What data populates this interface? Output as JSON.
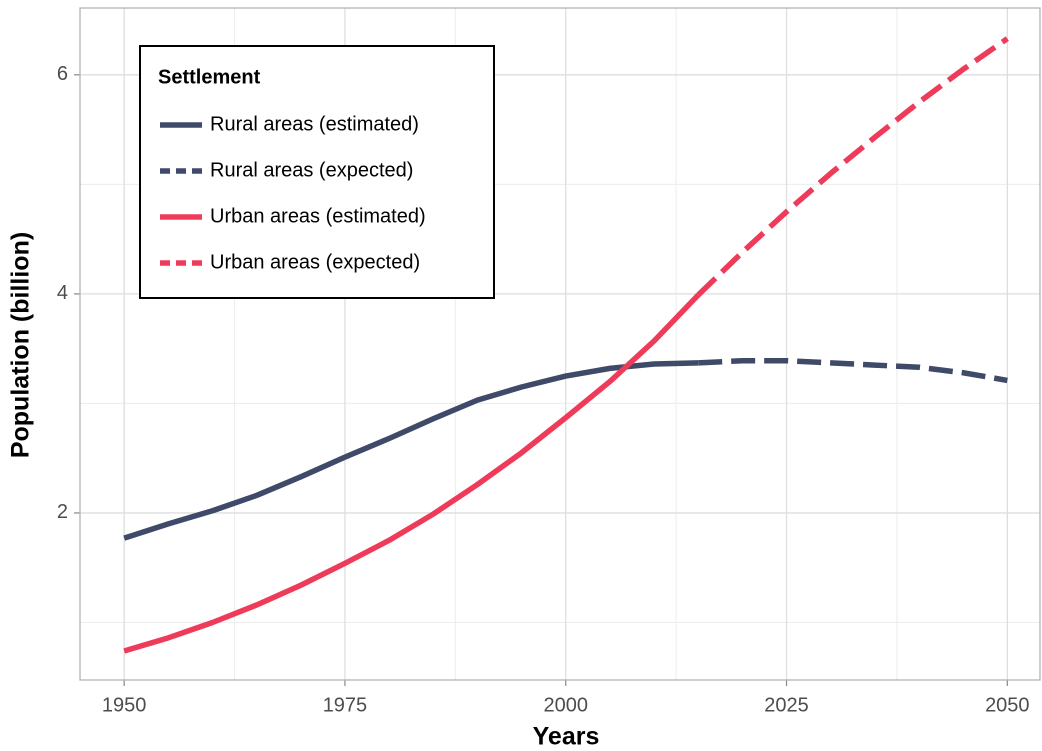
{
  "chart_data": {
    "type": "line",
    "x_label": "Years",
    "y_label": "Population (billion)",
    "legend_title": "Settlement",
    "legend_position": "top-left",
    "xlim": [
      1945,
      2053.7
    ],
    "xticks": [
      1950,
      1975,
      2000,
      2025,
      2050
    ],
    "x_minor_ticks": [
      1962.5,
      1987.5,
      2012.5,
      2037.5
    ],
    "ylim": [
      0.475,
      6.61
    ],
    "yticks": [
      2,
      4,
      6
    ],
    "y_minor_ticks": [
      1,
      3,
      5
    ],
    "grid": true,
    "series": [
      {
        "name": "Rural areas (estimated)",
        "color": "#3e4a68",
        "dashed": false,
        "x": [
          1950,
          1955,
          1960,
          1965,
          1970,
          1975,
          1980,
          1985,
          1990,
          1995,
          2000,
          2005,
          2010,
          2015
        ],
        "values": [
          1.77,
          1.9,
          2.02,
          2.16,
          2.33,
          2.51,
          2.68,
          2.86,
          3.03,
          3.15,
          3.25,
          3.32,
          3.36,
          3.37
        ]
      },
      {
        "name": "Rural areas (expected)",
        "color": "#3e4a68",
        "dashed": true,
        "x": [
          2015,
          2020,
          2025,
          2030,
          2035,
          2040,
          2045,
          2050
        ],
        "values": [
          3.37,
          3.39,
          3.39,
          3.37,
          3.35,
          3.33,
          3.28,
          3.21
        ]
      },
      {
        "name": "Urban areas (estimated)",
        "color": "#ef3b5a",
        "dashed": false,
        "x": [
          1950,
          1955,
          1960,
          1965,
          1970,
          1975,
          1980,
          1985,
          1990,
          1995,
          2000,
          2005,
          2010,
          2015
        ],
        "values": [
          0.74,
          0.86,
          1.0,
          1.16,
          1.34,
          1.54,
          1.75,
          1.99,
          2.26,
          2.55,
          2.87,
          3.2,
          3.57,
          3.99
        ]
      },
      {
        "name": "Urban areas (expected)",
        "color": "#ef3b5a",
        "dashed": true,
        "x": [
          2015,
          2020,
          2025,
          2030,
          2035,
          2040,
          2045,
          2050
        ],
        "values": [
          3.99,
          4.38,
          4.75,
          5.1,
          5.43,
          5.75,
          6.05,
          6.33
        ]
      }
    ]
  }
}
